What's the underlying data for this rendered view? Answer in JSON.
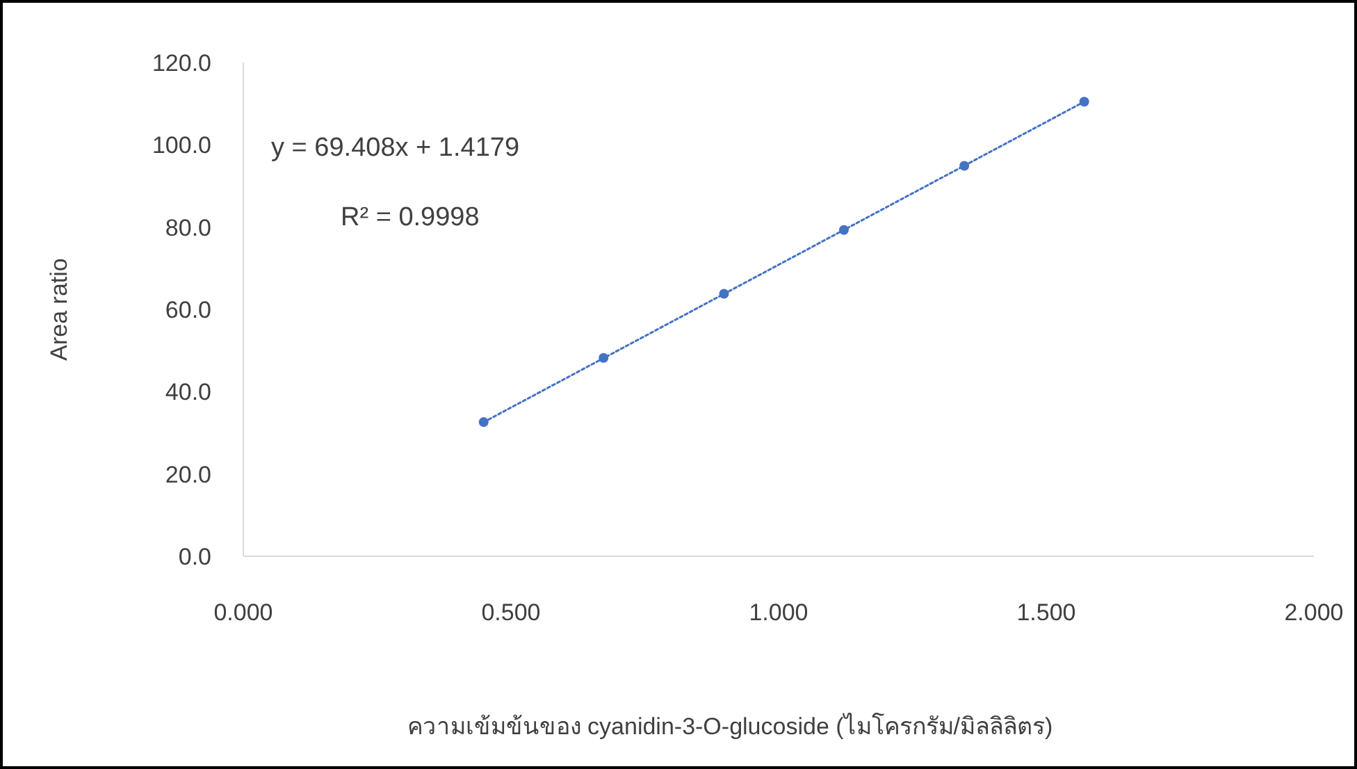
{
  "chart_data": {
    "type": "scatter",
    "xlabel": "ความเข้มข้นของ cyanidin-3-O-glucoside (ไมโครกรัม/มิลลิลิตร)",
    "ylabel": "Area ratio",
    "xlim": [
      0,
      2
    ],
    "xticks": [
      {
        "value": 0,
        "label": "0.000"
      },
      {
        "value": 0.5,
        "label": "0.500"
      },
      {
        "value": 1,
        "label": "1.000"
      },
      {
        "value": 1.5,
        "label": "1.500"
      },
      {
        "value": 2,
        "label": "2.000"
      }
    ],
    "ylim": [
      0,
      120
    ],
    "yticks": [
      {
        "value": 0,
        "label": "0.0"
      },
      {
        "value": 20,
        "label": "20.0"
      },
      {
        "value": 40,
        "label": "40.0"
      },
      {
        "value": 60,
        "label": "60.0"
      },
      {
        "value": 80,
        "label": "80.0"
      },
      {
        "value": 100,
        "label": "100.0"
      },
      {
        "value": 120,
        "label": "120.0"
      }
    ],
    "grid": false,
    "series": [
      {
        "color": "#4472c4",
        "x": [
          0.449,
          0.673,
          0.898,
          1.122,
          1.347,
          1.571
        ],
        "values": [
          32.6,
          48.2,
          63.8,
          79.3,
          94.9,
          110.5
        ]
      },
      {
        "type": "line",
        "color": "#4472c4",
        "line_style": "dotted",
        "marker": "none",
        "x": [
          0.449,
          1.571
        ],
        "values": [
          32.6,
          110.5
        ]
      }
    ],
    "annotations": [
      "y = 69.408x + 1.4179",
      "R² = 0.9998"
    ]
  }
}
